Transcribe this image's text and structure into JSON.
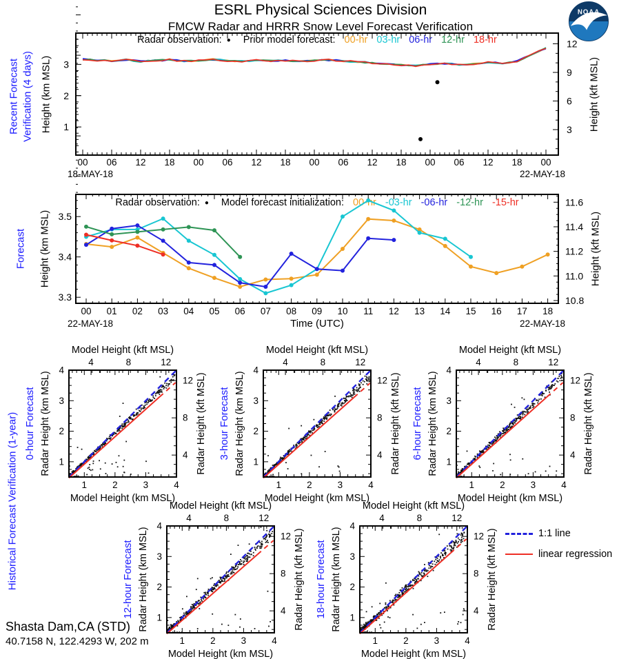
{
  "header": {
    "title": "ESRL Physical Sciences Division",
    "subtitle": "FMCW Radar and HRRR Snow Level Forecast Verification"
  },
  "logo": {
    "label": "NOAA"
  },
  "station": {
    "name": "Shasta Dam,CA (STD)",
    "coords": "40.7158 N, 122.4293 W, 202 m"
  },
  "colors": {
    "orange": "#efa023",
    "cyan": "#18c6d2",
    "blue": "#2222dd",
    "green": "#2e9455",
    "red": "#ee2e24",
    "label_blue": "#1a1aff",
    "black": "#000000"
  },
  "recent_panel": {
    "section_label_line1": "Recent Forecast",
    "section_label_line2": "Verification (4 days)",
    "legend_radar": "Radar observation:",
    "legend_model": "Prior model forecast:",
    "ylabel_left": "Height (km MSL)",
    "ylabel_right": "Height (kft MSL)",
    "date_left": "18-MAY-18",
    "date_right": "22-MAY-18"
  },
  "forecast_panel": {
    "section_label": "Forecast",
    "legend_radar": "Radar observation:",
    "legend_model": "Model forecast initialization:",
    "ylabel_left": "Height (km MSL)",
    "ylabel_right": "Height (kft MSL)",
    "xlabel": "Time (UTC)",
    "date_left": "22-MAY-18",
    "date_right": "22-MAY-18"
  },
  "historical_panel": {
    "section_label": "Historical Forecast Verification (1-year)",
    "axis_top": "Model Height (kft MSL)",
    "axis_bottom": "Model Height (km MSL)",
    "axis_left": "Radar Height (km MSL)",
    "axis_right": "Radar Height (kft MSL)",
    "legend_one_to_one": "1:1 line",
    "legend_regression": "linear regression"
  },
  "chart_data": [
    {
      "id": "recent-verification",
      "type": "line",
      "title": "Recent Forecast Verification (4 days)",
      "x_unit": "hours since 18-MAY-18 00:00 UTC",
      "x_range": [
        0,
        96
      ],
      "xtick_step_hr": 6,
      "xtick_cycle_labels": [
        "00",
        "06",
        "12",
        "18"
      ],
      "y_range_km": [
        0.1,
        4.0
      ],
      "yticks_km": [
        1,
        2,
        3
      ],
      "yticks_kft": [
        3,
        6,
        9,
        12
      ],
      "base_trend_hours": [
        0,
        3,
        6,
        9,
        12,
        15,
        18,
        21,
        24,
        27,
        30,
        33,
        36,
        39,
        42,
        45,
        48,
        51,
        54,
        57,
        60,
        63,
        66,
        69,
        72,
        75,
        78,
        81,
        84,
        87,
        90,
        93,
        96
      ],
      "base_trend_km": [
        3.16,
        3.13,
        3.11,
        3.15,
        3.09,
        3.12,
        3.15,
        3.1,
        3.13,
        3.16,
        3.12,
        3.1,
        3.13,
        3.11,
        3.13,
        3.1,
        3.12,
        3.14,
        3.11,
        3.08,
        3.05,
        3.01,
        2.98,
        2.96,
        3.0,
        3.03,
        2.99,
        3.02,
        3.06,
        3.03,
        3.1,
        3.3,
        3.52
      ],
      "series_note": "five forecast-lag traces overlap the base trend within ~±0.05 km; rendered as base trend plus small deterministic wiggle",
      "series": [
        {
          "name": "00-hr",
          "color": "#efa023",
          "seed": 7,
          "amp": 0.05
        },
        {
          "name": "03-hr",
          "color": "#18c6d2",
          "seed": 13,
          "amp": 0.055
        },
        {
          "name": "06-hr",
          "color": "#2222dd",
          "seed": 29,
          "amp": 0.06
        },
        {
          "name": "12-hr",
          "color": "#2e9455",
          "seed": 41,
          "amp": 0.05
        },
        {
          "name": "18-hr",
          "color": "#ee2e24",
          "seed": 53,
          "amp": 0.055
        }
      ],
      "radar_obs_km": [
        [
          70,
          0.61
        ],
        [
          73.5,
          2.43
        ]
      ]
    },
    {
      "id": "forecast",
      "type": "line",
      "title": "Forecast 22-MAY-18",
      "x_unit": "hour UTC",
      "x_range": [
        0,
        18
      ],
      "y_range_km": [
        3.285,
        3.555
      ],
      "yticks_km": [
        3.3,
        3.4,
        3.5
      ],
      "yticks_kft": [
        10.8,
        11.0,
        11.2,
        11.4,
        11.6
      ],
      "series": [
        {
          "name": "00-hr",
          "color": "#efa023",
          "x": [
            0,
            1,
            2,
            3,
            4,
            5,
            6,
            7,
            8,
            9,
            10,
            11,
            12,
            13,
            14,
            15,
            16,
            17,
            18
          ],
          "y": [
            3.432,
            3.425,
            3.448,
            3.41,
            3.372,
            3.348,
            3.326,
            3.344,
            3.346,
            3.356,
            3.42,
            3.494,
            3.49,
            3.468,
            3.427,
            3.376,
            3.36,
            3.376,
            3.406
          ]
        },
        {
          "name": "-03-hr",
          "color": "#18c6d2",
          "x": [
            0,
            1,
            2,
            3,
            4,
            5,
            6,
            7,
            8,
            9,
            10,
            11,
            12,
            13,
            14,
            15
          ],
          "y": [
            3.45,
            3.468,
            3.468,
            3.495,
            3.44,
            3.405,
            3.345,
            3.31,
            3.33,
            3.37,
            3.5,
            3.54,
            3.515,
            3.46,
            3.445,
            3.4
          ]
        },
        {
          "name": "-06-hr",
          "color": "#2222dd",
          "x": [
            0,
            1,
            2,
            3,
            4,
            5,
            6,
            7,
            8,
            9,
            10,
            11,
            12
          ],
          "y": [
            3.43,
            3.47,
            3.478,
            3.44,
            3.386,
            3.38,
            3.336,
            3.326,
            3.408,
            3.37,
            3.366,
            3.446,
            3.442
          ]
        },
        {
          "name": "-12-hr",
          "color": "#2e9455",
          "x": [
            0,
            1,
            2,
            3,
            4,
            5,
            6
          ],
          "y": [
            3.475,
            3.456,
            3.462,
            3.468,
            3.474,
            3.466,
            3.4
          ]
        },
        {
          "name": "-15-hr",
          "color": "#ee2e24",
          "x": [
            0,
            1,
            2,
            3
          ],
          "y": [
            3.455,
            3.441,
            3.428,
            3.406
          ]
        }
      ]
    },
    {
      "id": "scatter-0-hour",
      "type": "scatter",
      "title": "0-hour Forecast",
      "x_range": [
        0.5,
        4
      ],
      "y_range": [
        0.5,
        4
      ],
      "xticks": [
        1,
        2,
        3,
        4
      ],
      "kft_ticks": [
        4,
        8,
        12
      ],
      "n_points": 380,
      "seed": 101,
      "spread": 0.12,
      "one_to_one": [
        [
          0.5,
          0.5
        ],
        [
          4,
          4
        ]
      ],
      "regression": [
        [
          0.5,
          0.47
        ],
        [
          4.0,
          3.62
        ]
      ],
      "points_note": "dense 1-year verification cloud along diagonal; procedurally approximated from seed/spread"
    },
    {
      "id": "scatter-3-hour",
      "type": "scatter",
      "title": "3-hour Forecast",
      "x_range": [
        0.5,
        4
      ],
      "y_range": [
        0.5,
        4
      ],
      "xticks": [
        1,
        2,
        3,
        4
      ],
      "kft_ticks": [
        4,
        8,
        12
      ],
      "n_points": 380,
      "seed": 202,
      "spread": 0.14,
      "one_to_one": [
        [
          0.5,
          0.5
        ],
        [
          4,
          4
        ]
      ],
      "regression": [
        [
          0.5,
          0.47
        ],
        [
          4.0,
          3.6
        ]
      ],
      "points_note": "dense 1-year verification cloud along diagonal; procedurally approximated from seed/spread"
    },
    {
      "id": "scatter-6-hour",
      "type": "scatter",
      "title": "6-hour Forecast",
      "x_range": [
        0.5,
        4
      ],
      "y_range": [
        0.5,
        4
      ],
      "xticks": [
        1,
        2,
        3,
        4
      ],
      "kft_ticks": [
        4,
        8,
        12
      ],
      "n_points": 380,
      "seed": 303,
      "spread": 0.16,
      "one_to_one": [
        [
          0.5,
          0.5
        ],
        [
          4,
          4
        ]
      ],
      "regression": [
        [
          0.5,
          0.47
        ],
        [
          4.0,
          3.62
        ]
      ],
      "points_note": "dense 1-year verification cloud along diagonal; procedurally approximated from seed/spread"
    },
    {
      "id": "scatter-12-hour",
      "type": "scatter",
      "title": "12-hour Forecast",
      "x_range": [
        0.5,
        4
      ],
      "y_range": [
        0.5,
        4
      ],
      "xticks": [
        1,
        2,
        3,
        4
      ],
      "kft_ticks": [
        4,
        8,
        12
      ],
      "n_points": 400,
      "seed": 404,
      "spread": 0.19,
      "one_to_one": [
        [
          0.5,
          0.5
        ],
        [
          4,
          4
        ]
      ],
      "regression": [
        [
          0.5,
          0.47
        ],
        [
          4.0,
          3.55
        ]
      ],
      "points_note": "dense 1-year verification cloud along diagonal; procedurally approximated from seed/spread"
    },
    {
      "id": "scatter-18-hour",
      "type": "scatter",
      "title": "18-hour Forecast",
      "x_range": [
        0.5,
        4
      ],
      "y_range": [
        0.5,
        4
      ],
      "xticks": [
        1,
        2,
        3,
        4
      ],
      "kft_ticks": [
        4,
        8,
        12
      ],
      "n_points": 420,
      "seed": 505,
      "spread": 0.22,
      "one_to_one": [
        [
          0.5,
          0.5
        ],
        [
          4,
          4
        ]
      ],
      "regression": [
        [
          0.5,
          0.47
        ],
        [
          4.0,
          3.6
        ]
      ],
      "points_note": "dense 1-year verification cloud along diagonal; procedurally approximated from seed/spread"
    }
  ],
  "recent_legend_items": [
    {
      "label": "00-hr",
      "color": "#efa023"
    },
    {
      "label": "03-hr",
      "color": "#18c6d2"
    },
    {
      "label": "06-hr",
      "color": "#2222dd"
    },
    {
      "label": "12-hr",
      "color": "#2e9455"
    },
    {
      "label": "18-hr",
      "color": "#ee2e24"
    }
  ],
  "forecast_legend_items": [
    {
      "label": "00-hr",
      "color": "#efa023"
    },
    {
      "label": "-03-hr",
      "color": "#18c6d2"
    },
    {
      "label": "-06-hr",
      "color": "#2222dd"
    },
    {
      "label": "-12-hr",
      "color": "#2e9455"
    },
    {
      "label": "-15-hr",
      "color": "#ee2e24"
    }
  ]
}
